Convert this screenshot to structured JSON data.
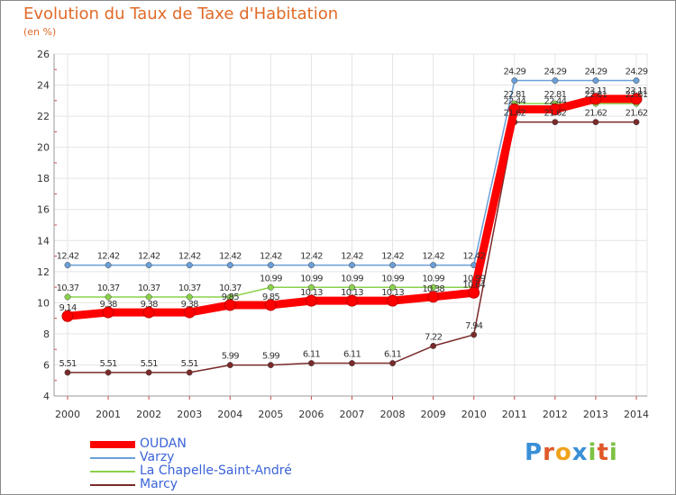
{
  "chart_data": {
    "type": "line",
    "title": "Evolution du Taux de Taxe d'Habitation",
    "subtitle": "(en %)",
    "x": [
      "2000",
      "2001",
      "2002",
      "2003",
      "2004",
      "2005",
      "2006",
      "2007",
      "2008",
      "2009",
      "2010",
      "2011",
      "2012",
      "2013",
      "2014"
    ],
    "ylim": [
      4,
      26
    ],
    "yticks": [
      4,
      6,
      8,
      10,
      12,
      14,
      16,
      18,
      20,
      22,
      24,
      26
    ],
    "grid": true,
    "legend_placement": "bottom-left",
    "series": [
      {
        "name": "OUDAN",
        "color": "#ff0000",
        "values": [
          9.14,
          9.38,
          9.38,
          9.38,
          9.85,
          9.85,
          10.13,
          10.13,
          10.13,
          10.38,
          10.64,
          22.44,
          22.44,
          23.11,
          23.11
        ]
      },
      {
        "name": "Varzy",
        "color": "#6a9fd8",
        "values": [
          12.42,
          12.42,
          12.42,
          12.42,
          12.42,
          12.42,
          12.42,
          12.42,
          12.42,
          12.42,
          12.42,
          24.29,
          24.29,
          24.29,
          24.29
        ]
      },
      {
        "name": "La Chapelle-Saint-André",
        "color": "#8bd24a",
        "values": [
          10.37,
          10.37,
          10.37,
          10.37,
          10.37,
          10.99,
          10.99,
          10.99,
          10.99,
          10.99,
          10.99,
          22.81,
          22.81,
          22.81,
          22.81
        ]
      },
      {
        "name": "Marcy",
        "color": "#7a2a2a",
        "values": [
          5.51,
          5.51,
          5.51,
          5.51,
          5.99,
          5.99,
          6.11,
          6.11,
          6.11,
          7.22,
          7.94,
          21.62,
          21.62,
          21.62,
          21.62
        ]
      }
    ]
  },
  "logo": {
    "text": "Proxiti",
    "letters": [
      "P",
      "r",
      "o",
      "x",
      "i",
      "t",
      "i"
    ],
    "colors": [
      "#3a8fd6",
      "#e0592a",
      "#f0a21e",
      "#3a8fd6",
      "#7cc243",
      "#e0592a",
      "#7cc243"
    ]
  }
}
